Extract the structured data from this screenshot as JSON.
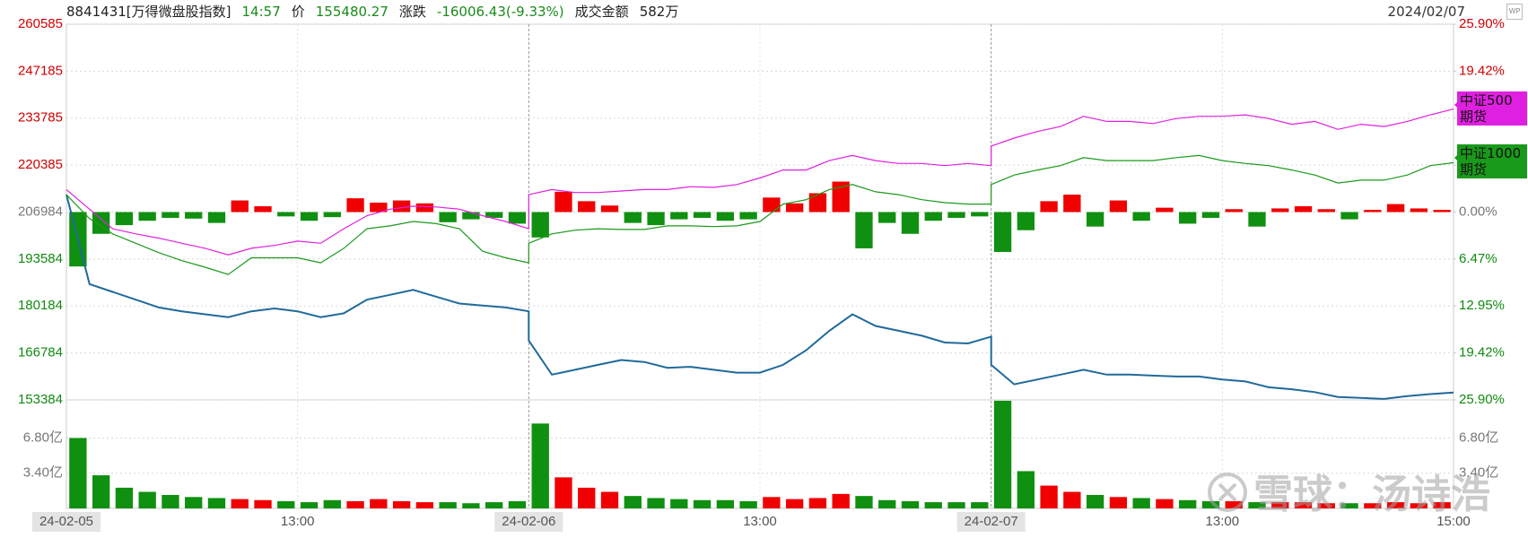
{
  "chart_data": {
    "type": "line",
    "header": {
      "code": "8841431[万得微盘股指数]",
      "time": "14:57",
      "price_label": "价",
      "price": "155480.27",
      "change_label": "涨跌",
      "change": "-16006.43(-9.33%)",
      "amount_label": "成交金额",
      "amount": "582万",
      "date": "2024/02/07",
      "icon": "WP"
    },
    "watermark": "雪球：汤诗浩",
    "x": [
      0,
      0.05,
      0.1,
      0.15,
      0.2,
      0.25,
      0.3,
      0.35,
      0.4,
      0.45,
      0.5,
      0.55,
      0.6,
      0.65,
      0.7,
      0.75,
      0.8,
      0.85,
      0.9,
      0.95,
      1,
      1,
      1.05,
      1.1,
      1.15,
      1.2,
      1.25,
      1.3,
      1.35,
      1.4,
      1.45,
      1.5,
      1.55,
      1.6,
      1.65,
      1.7,
      1.75,
      1.8,
      1.85,
      1.9,
      1.95,
      2,
      2,
      2.05,
      2.1,
      2.15,
      2.2,
      2.25,
      2.3,
      2.35,
      2.4,
      2.45,
      2.5,
      2.55,
      2.6,
      2.65,
      2.7,
      2.75,
      2.8,
      2.85,
      2.9,
      2.95,
      3
    ],
    "xlim": [
      0,
      3
    ],
    "xticks": [
      {
        "value": 0,
        "label": "24-02-05"
      },
      {
        "value": 0.5,
        "label": "13:00"
      },
      {
        "value": 1,
        "label": "24-02-06"
      },
      {
        "value": 1.5,
        "label": "13:00"
      },
      {
        "value": 2,
        "label": "24-02-07"
      },
      {
        "value": 2.5,
        "label": "13:00"
      },
      {
        "value": 3,
        "label": "15:00"
      }
    ],
    "ylim": [
      153384,
      260585
    ],
    "yticks": [
      260585,
      247185,
      233785,
      220385,
      206984,
      193584,
      180184,
      166784,
      153384
    ],
    "y2lim": [
      -25.9,
      25.9
    ],
    "y2ticks": [
      {
        "value": 25.9,
        "label": "25.90%"
      },
      {
        "value": 19.42,
        "label": "19.42%"
      },
      {
        "value": 12.95,
        "label": "12.95%"
      },
      {
        "value": 6.47,
        "label": "6.47%"
      },
      {
        "value": 0,
        "label": "0.00%"
      },
      {
        "value": -6.47,
        "label": "6.47%"
      },
      {
        "value": -12.95,
        "label": "12.95%"
      },
      {
        "value": -19.42,
        "label": "19.42%"
      },
      {
        "value": -25.9,
        "label": "25.90%"
      }
    ],
    "grid": true,
    "series": [
      {
        "color": "#1f6a9a",
        "values": [
          211983,
          186433,
          184211,
          181989,
          179767,
          178657,
          177823,
          176990,
          178657,
          179490,
          178657,
          176990,
          178101,
          181989,
          183378,
          184766,
          182822,
          180878,
          180323,
          179767,
          178657,
          170325,
          160605,
          161993,
          163382,
          164771,
          164215,
          162549,
          162826,
          161993,
          161160,
          161160,
          163382,
          167548,
          173102,
          177823,
          174491,
          173102,
          171714,
          169769,
          169492,
          171436,
          163382,
          157828,
          159216,
          160605,
          161993,
          160605,
          160605,
          160327,
          160049,
          160049,
          159216,
          158661,
          156994,
          156439,
          155606,
          154217,
          153939,
          153662,
          154495,
          155050,
          155480
        ]
      },
      {
        "name": "中证500期货",
        "axis": "y2",
        "color": "#e020e0",
        "values": [
          3.1,
          0.4,
          -2.3,
          -3.0,
          -3.6,
          -4.3,
          -5.0,
          -5.9,
          -5.0,
          -4.6,
          -4.0,
          -4.3,
          -2.3,
          -0.5,
          0.4,
          0.8,
          0.7,
          0.4,
          -0.5,
          -1.3,
          -2.3,
          2.4,
          3.1,
          2.7,
          2.7,
          2.9,
          3.1,
          3.1,
          3.5,
          3.4,
          3.8,
          4.7,
          5.8,
          5.8,
          7.1,
          7.8,
          7.1,
          6.7,
          6.7,
          6.4,
          6.7,
          6.4,
          9.1,
          10.2,
          11.1,
          11.8,
          13.2,
          12.5,
          12.5,
          12.2,
          12.9,
          13.2,
          13.2,
          13.4,
          12.9,
          12.1,
          12.5,
          11.4,
          12.1,
          11.8,
          12.5,
          13.4,
          14.2
        ]
      },
      {
        "name": "中证1000期货",
        "axis": "y2",
        "color": "#1a9a1a",
        "values": [
          2.4,
          -0.9,
          -3.0,
          -4.3,
          -5.6,
          -6.7,
          -7.6,
          -8.6,
          -6.3,
          -6.3,
          -6.3,
          -7.0,
          -5.0,
          -2.3,
          -1.9,
          -1.3,
          -1.6,
          -2.3,
          -5.4,
          -6.3,
          -7.0,
          -4.3,
          -3.0,
          -2.5,
          -2.3,
          -2.4,
          -2.4,
          -1.9,
          -1.9,
          -2.0,
          -1.9,
          -1.3,
          1.1,
          1.7,
          3.1,
          3.8,
          2.8,
          2.4,
          1.7,
          1.3,
          1.1,
          1.1,
          3.8,
          5.1,
          5.8,
          6.4,
          7.5,
          7.1,
          7.1,
          7.1,
          7.5,
          7.8,
          7.1,
          6.7,
          6.4,
          5.8,
          5.1,
          4.0,
          4.4,
          4.4,
          5.1,
          6.4,
          6.8
        ]
      }
    ],
    "bar_x": [
      0.025,
      0.075,
      0.125,
      0.175,
      0.225,
      0.275,
      0.325,
      0.375,
      0.425,
      0.475,
      0.525,
      0.575,
      0.625,
      0.675,
      0.725,
      0.775,
      0.825,
      0.875,
      0.925,
      0.975,
      1.025,
      1.075,
      1.125,
      1.175,
      1.225,
      1.275,
      1.325,
      1.375,
      1.425,
      1.475,
      1.525,
      1.575,
      1.625,
      1.675,
      1.725,
      1.775,
      1.825,
      1.875,
      1.925,
      1.975,
      2.025,
      2.075,
      2.125,
      2.175,
      2.225,
      2.275,
      2.325,
      2.375,
      2.425,
      2.475,
      2.525,
      2.575,
      2.625,
      2.675,
      2.725,
      2.775,
      2.825,
      2.875,
      2.925,
      2.975
    ],
    "bars": {
      "axis": "y2",
      "up_color": "#f00000",
      "down_color": "#109010",
      "values": [
        -7.5,
        -3.0,
        -1.8,
        -1.2,
        -0.8,
        -0.9,
        -1.5,
        1.6,
        0.8,
        -0.6,
        -1.2,
        -0.7,
        1.9,
        1.3,
        1.6,
        1.2,
        -1.4,
        -1.0,
        -0.8,
        -1.6,
        -3.5,
        2.8,
        1.5,
        0.9,
        -1.5,
        -1.8,
        -1.0,
        -0.8,
        -1.2,
        -1.0,
        2.0,
        1.2,
        2.6,
        4.2,
        -5.0,
        -1.5,
        -3.0,
        -1.2,
        -0.8,
        -0.6,
        -5.5,
        -2.5,
        1.5,
        2.4,
        -2.0,
        1.6,
        -1.2,
        0.6,
        -1.6,
        -0.8,
        0.4,
        -2.0,
        0.5,
        0.8,
        0.4,
        -1.0,
        0.3,
        1.1,
        0.5,
        0.3
      ]
    },
    "volume": {
      "ylim": [
        0,
        10.48
      ],
      "yticks": [
        {
          "value": 6.8,
          "label": "6.80亿"
        },
        {
          "value": 3.4,
          "label": "3.40亿"
        }
      ],
      "values": [
        6.8,
        3.2,
        2.0,
        1.6,
        1.3,
        1.1,
        1.0,
        0.9,
        0.8,
        0.7,
        0.6,
        0.8,
        0.7,
        0.9,
        0.7,
        0.6,
        0.6,
        0.5,
        0.6,
        0.7,
        8.2,
        3.0,
        2.0,
        1.6,
        1.2,
        1.0,
        0.9,
        0.8,
        0.8,
        0.7,
        1.1,
        0.9,
        1.0,
        1.4,
        1.2,
        0.8,
        0.7,
        0.6,
        0.6,
        0.6,
        10.4,
        3.6,
        2.2,
        1.6,
        1.3,
        1.1,
        1.0,
        0.9,
        0.8,
        0.7,
        0.7,
        0.6,
        0.6,
        0.6,
        0.5,
        0.5,
        0.5,
        0.6,
        0.5,
        0.6
      ]
    }
  }
}
